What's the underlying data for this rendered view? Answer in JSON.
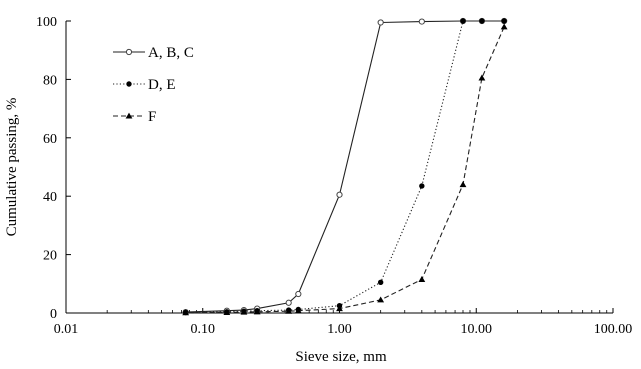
{
  "chart_data": {
    "type": "line",
    "title": "",
    "xlabel": "Sieve size, mm",
    "ylabel": "Cumulative passing, %",
    "x_scale": "log",
    "xlim": [
      0.01,
      100
    ],
    "ylim": [
      0,
      100
    ],
    "x_ticks": [
      0.01,
      0.1,
      1,
      10,
      100
    ],
    "x_tick_labels": [
      "0.01",
      "0.10",
      "1.00",
      "10.00",
      "100.00"
    ],
    "y_ticks": [
      0,
      20,
      40,
      60,
      80,
      100
    ],
    "y_tick_labels": [
      "0",
      "20",
      "40",
      "60",
      "80",
      "100"
    ],
    "grid": false,
    "legend_position": "top-left",
    "series": [
      {
        "name": "A, B, C",
        "line_style": "solid",
        "marker": "open-circle",
        "x": [
          0.075,
          0.15,
          0.2,
          0.25,
          0.425,
          0.5,
          1.0,
          2.0,
          4.0,
          8.0,
          11.0,
          16.0
        ],
        "y": [
          0.3,
          0.8,
          1.0,
          1.5,
          3.5,
          6.5,
          40.5,
          99.5,
          99.8,
          100,
          100,
          100
        ]
      },
      {
        "name": "D, E",
        "line_style": "dotted",
        "marker": "filled-circle",
        "x": [
          0.075,
          0.15,
          0.2,
          0.25,
          0.425,
          0.5,
          1.0,
          2.0,
          4.0,
          8.0,
          11.0,
          16.0
        ],
        "y": [
          0.2,
          0.4,
          0.6,
          0.8,
          1.0,
          1.2,
          2.5,
          10.5,
          43.5,
          100,
          100,
          100
        ]
      },
      {
        "name": "F",
        "line_style": "dashed",
        "marker": "filled-triangle",
        "x": [
          0.075,
          0.15,
          0.2,
          0.25,
          0.425,
          0.5,
          1.0,
          2.0,
          4.0,
          8.0,
          11.0,
          16.0
        ],
        "y": [
          0.1,
          0.2,
          0.3,
          0.4,
          0.6,
          0.8,
          1.5,
          4.5,
          11.5,
          44.0,
          80.5,
          98.0
        ]
      }
    ]
  }
}
